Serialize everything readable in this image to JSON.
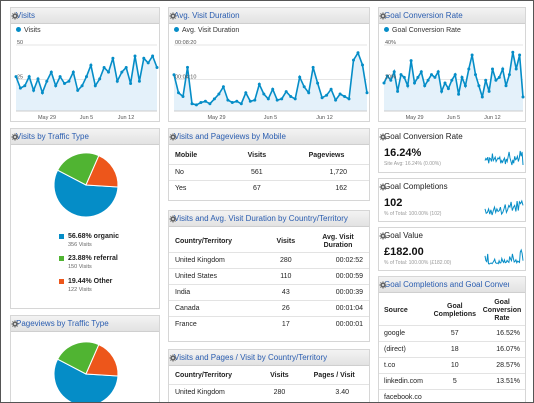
{
  "colors": {
    "accent": "#058dc7",
    "green": "#50b432",
    "orange": "#ed561b",
    "title_blue": "#2a5db0"
  },
  "visits": {
    "title": "Visits",
    "legend": "Visits",
    "y_ticks": [
      "50",
      "25"
    ],
    "x_ticks": [
      "May 29",
      "Jun 5",
      "Jun 12"
    ],
    "chart_data": {
      "type": "area",
      "series": [
        {
          "name": "Visits",
          "values": [
            30,
            20,
            22,
            30,
            18,
            28,
            16,
            26,
            34,
            22,
            30,
            24,
            26,
            34,
            18,
            22,
            30,
            40,
            22,
            28,
            38,
            34,
            46,
            26,
            34,
            38,
            24,
            48,
            26,
            46,
            42,
            48,
            38
          ]
        }
      ],
      "ylim": [
        0,
        55
      ]
    }
  },
  "avg_duration": {
    "title": "Avg. Visit Duration",
    "legend": "Avg. Visit Duration",
    "y_ticks": [
      "00:08:20",
      "00:04:10"
    ],
    "x_ticks": [
      "May 29",
      "Jun 5",
      "Jun 12"
    ],
    "chart_data": {
      "type": "area",
      "series": [
        {
          "name": "Avg. Visit Duration",
          "values": [
            300,
            150,
            120,
            360,
            60,
            50,
            70,
            80,
            60,
            100,
            140,
            200,
            90,
            70,
            80,
            60,
            150,
            80,
            90,
            220,
            140,
            100,
            180,
            90,
            100,
            160,
            120,
            100,
            280,
            200,
            150,
            360,
            230,
            110,
            130,
            180,
            90,
            140,
            120,
            100,
            420,
            480,
            380,
            150
          ]
        }
      ],
      "ylim": [
        0,
        520
      ]
    }
  },
  "goal_rate": {
    "title": "Goal Conversion Rate",
    "legend": "Goal Conversion Rate",
    "y_ticks": [
      "40%",
      "20%"
    ],
    "x_ticks": [
      "May 29",
      "Jun 5",
      "Jun 12"
    ],
    "chart_data": {
      "type": "area",
      "series": [
        {
          "name": "Goal Conversion Rate",
          "values": [
            20,
            25,
            22,
            28,
            14,
            26,
            24,
            18,
            36,
            20,
            24,
            28,
            18,
            22,
            26,
            24,
            28,
            14,
            20,
            16,
            22,
            26,
            12,
            24,
            18,
            30,
            40,
            26,
            18,
            10,
            22,
            14,
            30,
            22,
            24,
            30,
            18,
            26,
            42,
            30,
            40,
            10
          ]
        }
      ],
      "ylim": [
        0,
        45
      ]
    }
  },
  "traffic_type": {
    "title": "Visits by Traffic Type",
    "chart_data": {
      "type": "pie",
      "series": [
        {
          "name": "organic",
          "values": [
            56.68
          ]
        },
        {
          "name": "referral",
          "values": [
            23.88
          ]
        },
        {
          "name": "Other",
          "values": [
            19.44
          ]
        }
      ]
    },
    "items": [
      {
        "pct": "56.68% organic",
        "count": "356 Visits"
      },
      {
        "pct": "23.88% referral",
        "count": "150 Visits"
      },
      {
        "pct": "19.44% Other",
        "count": "122 Visits"
      }
    ]
  },
  "pageviews_traffic": {
    "title": "Pageviews by Traffic Type",
    "chart_data": {
      "type": "pie",
      "values": [
        56.68,
        23.88,
        19.44
      ]
    }
  },
  "mobile": {
    "title": "Visits and Pageviews by Mobile",
    "headers": [
      "Mobile",
      "Visits",
      "Pageviews"
    ],
    "rows": [
      [
        "No",
        "561",
        "1,720"
      ],
      [
        "Yes",
        "67",
        "162"
      ]
    ]
  },
  "country_duration": {
    "title": "Visits and Avg. Visit Duration by Country/Territory",
    "headers": [
      "Country/Territory",
      "Visits",
      "Avg. Visit Duration"
    ],
    "rows": [
      [
        "United Kingdom",
        "280",
        "00:02:52"
      ],
      [
        "United States",
        "110",
        "00:00:59"
      ],
      [
        "India",
        "43",
        "00:00:39"
      ],
      [
        "Canada",
        "26",
        "00:01:04"
      ],
      [
        "France",
        "17",
        "00:00:01"
      ]
    ]
  },
  "country_pages": {
    "title": "Visits and Pages / Visit by Country/Territory",
    "headers": [
      "Country/Territory",
      "Visits",
      "Pages / Visit"
    ],
    "rows": [
      [
        "United Kingdom",
        "280",
        "3.40"
      ]
    ]
  },
  "kpi_rate": {
    "title": "Goal Conversion Rate",
    "value": "16.24%",
    "sub": "Site Avg: 16.24% (0.00%)"
  },
  "kpi_completions": {
    "title": "Goal Completions",
    "value": "102",
    "sub": "% of Total: 100.00% (102)"
  },
  "kpi_value": {
    "title": "Goal Value",
    "value": "£182.00",
    "sub": "% of Total: 100.00% (£182.00)"
  },
  "source_table": {
    "title": "Goal Completions and Goal Conversi...",
    "headers": [
      "Source",
      "Goal Completions",
      "Goal Conversion Rate"
    ],
    "rows": [
      [
        "google",
        "57",
        "16.52%"
      ],
      [
        "(direct)",
        "18",
        "16.07%"
      ],
      [
        "t.co",
        "10",
        "28.57%"
      ],
      [
        "linkedin.com",
        "5",
        "13.51%"
      ],
      [
        "facebook.co",
        "",
        ""
      ]
    ]
  }
}
